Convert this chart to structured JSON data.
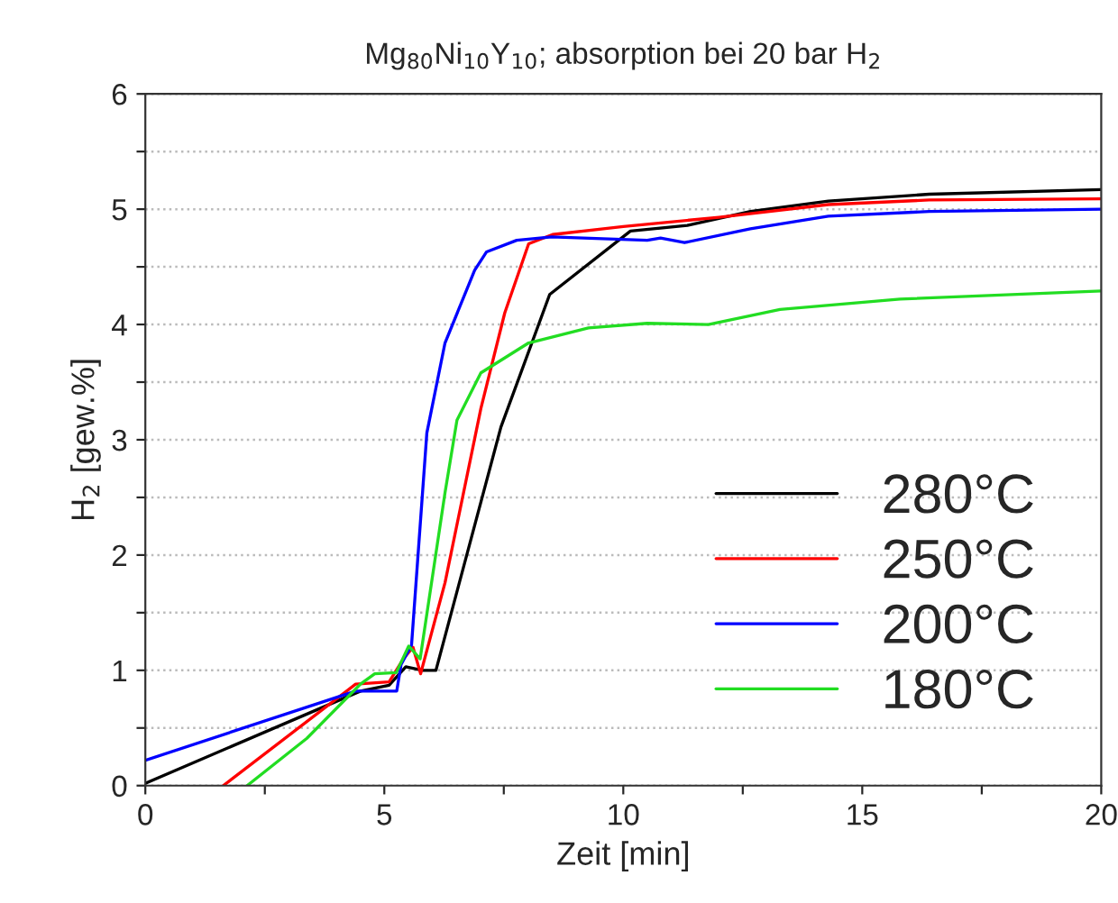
{
  "chart_data": {
    "type": "line",
    "title": "Mg$_{80}$Ni$_{10}$Y$_{10}$; absorption bei 20 bar H$_{2}$",
    "xlabel": "Zeit [min]",
    "ylabel": "H$_{2}$ [gew.%]",
    "xlim": [
      0,
      20
    ],
    "ylim": [
      0,
      6
    ],
    "xticks": [
      0,
      {
        "value": 2.5,
        "label": null
      },
      5,
      {
        "value": 7.5,
        "label": null
      },
      10,
      {
        "value": 12.5,
        "label": null
      },
      15,
      {
        "value": 17.5,
        "label": null
      },
      20
    ],
    "yticks": [
      0,
      {
        "value": 0.5,
        "label": null
      },
      1,
      {
        "value": 1.5,
        "label": null
      },
      2,
      {
        "value": 2.5,
        "label": null
      },
      3,
      {
        "value": 3.5,
        "label": null
      },
      4,
      {
        "value": 4.5,
        "label": null
      },
      5,
      {
        "value": 5.5,
        "label": null
      },
      6
    ],
    "grid": "y",
    "legend": "bottom right",
    "marker": "none",
    "line_style": "solid",
    "series": [
      {
        "name": "280°C",
        "color": "#000000",
        "x": [
          0,
          4.5,
          5.1,
          5.45,
          5.8,
          6.08,
          7.44,
          8.46,
          10.15,
          11.34,
          12.66,
          14.29,
          16.4,
          20
        ],
        "values": [
          0.02,
          0.82,
          0.87,
          1.03,
          1.0,
          1.0,
          3.11,
          4.26,
          4.81,
          4.86,
          4.98,
          5.07,
          5.13,
          5.17
        ]
      },
      {
        "name": "250°C",
        "color": "#ff0000",
        "x": [
          1.63,
          4.4,
          5.1,
          5.4,
          5.6,
          5.76,
          6.27,
          7.02,
          7.52,
          8.02,
          8.52,
          10,
          12,
          14.29,
          16.4,
          20
        ],
        "values": [
          0,
          0.88,
          0.9,
          1.1,
          1.2,
          0.97,
          1.76,
          3.27,
          4.1,
          4.7,
          4.78,
          4.85,
          4.93,
          5.04,
          5.08,
          5.09
        ]
      },
      {
        "name": "200°C",
        "color": "#0000ff",
        "x": [
          0,
          4.4,
          5.26,
          5.35,
          5.57,
          5.89,
          6.27,
          6.89,
          7.14,
          7.77,
          8.5,
          10.5,
          10.78,
          11.28,
          12.66,
          14.29,
          16.4,
          20
        ],
        "values": [
          0.22,
          0.82,
          0.82,
          1.05,
          1.22,
          3.06,
          3.84,
          4.47,
          4.63,
          4.73,
          4.76,
          4.73,
          4.75,
          4.71,
          4.83,
          4.94,
          4.98,
          5.0
        ]
      },
      {
        "name": "180°C",
        "color": "#22dd22",
        "x": [
          2.13,
          3.38,
          4.5,
          4.8,
          5.25,
          5.51,
          5.75,
          6.27,
          6.52,
          7.02,
          8.02,
          9.27,
          10.5,
          11.78,
          13.28,
          15.79,
          20
        ],
        "values": [
          0,
          0.41,
          0.88,
          0.97,
          0.98,
          1.21,
          1.1,
          2.54,
          3.17,
          3.58,
          3.84,
          3.97,
          4.01,
          4.0,
          4.13,
          4.22,
          4.29
        ]
      }
    ]
  }
}
